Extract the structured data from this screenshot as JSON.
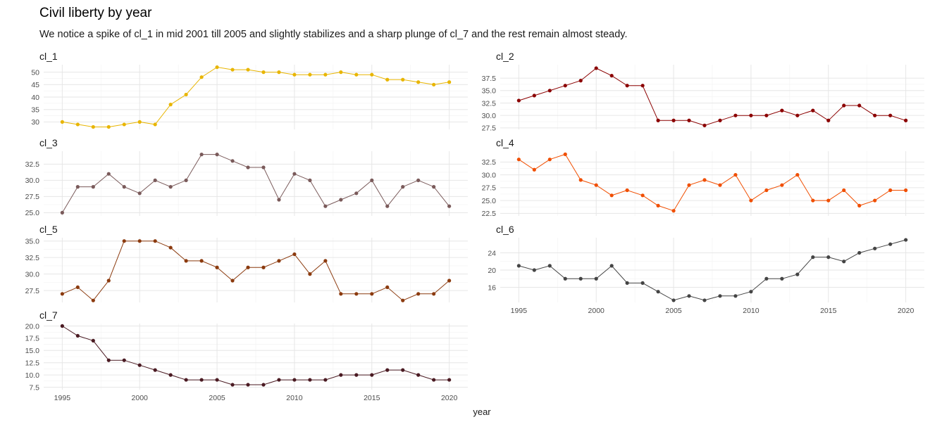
{
  "title": "Civil liberty by year",
  "subtitle": "We notice a spike of cl_1 in mid 2001 till 2005 and slightly stabilizes and a sharp plunge of cl_7 and the rest remain almost steady.",
  "chart_data": {
    "type": "line",
    "title": "Civil liberty by year",
    "subtitle": "We notice a spike of cl_1 in mid 2001 till 2005 and slightly stabilizes and a sharp plunge of cl_7 and the rest remain almost steady.",
    "xlabel": "year",
    "ylabel": "",
    "x": [
      1995,
      1996,
      1997,
      1998,
      1999,
      2000,
      2001,
      2002,
      2003,
      2004,
      2005,
      2006,
      2007,
      2008,
      2009,
      2010,
      2011,
      2012,
      2013,
      2014,
      2015,
      2016,
      2017,
      2018,
      2019,
      2020
    ],
    "x_ticks": [
      1995,
      2000,
      2005,
      2010,
      2015,
      2020
    ],
    "grid": true,
    "facets": [
      {
        "name": "cl_1",
        "color": "#E8B500",
        "ylim": [
          27,
          53
        ],
        "y_ticks": [
          30,
          35,
          40,
          45,
          50
        ],
        "y_tick_labels": [
          "30",
          "35",
          "40",
          "45",
          "50"
        ],
        "values": [
          30,
          29,
          28,
          28,
          29,
          30,
          29,
          37,
          41,
          48,
          52,
          51,
          51,
          50,
          50,
          49,
          49,
          49,
          50,
          49,
          49,
          47,
          47,
          46,
          45,
          46
        ]
      },
      {
        "name": "cl_2",
        "color": "#8B0000",
        "ylim": [
          27.2,
          40.2
        ],
        "y_ticks": [
          27.5,
          30,
          32.5,
          35,
          37.5
        ],
        "y_tick_labels": [
          "27.5",
          "30.0",
          "32.5",
          "35.0",
          "37.5"
        ],
        "values": [
          33,
          34,
          35,
          36,
          37,
          39.5,
          38,
          36,
          36,
          29,
          29,
          29,
          28,
          29,
          30,
          30,
          30,
          31,
          30,
          31,
          29,
          32,
          32,
          30,
          30,
          29
        ]
      },
      {
        "name": "cl_3",
        "color": "#7A5A5A",
        "ylim": [
          24.5,
          34.5
        ],
        "y_ticks": [
          25,
          27.5,
          30,
          32.5
        ],
        "y_tick_labels": [
          "25.0",
          "27.5",
          "30.0",
          "32.5"
        ],
        "values": [
          25,
          29,
          29,
          31,
          29,
          28,
          30,
          29,
          30,
          34,
          34,
          33,
          32,
          32,
          27,
          31,
          30,
          26,
          27,
          28,
          30,
          26,
          29,
          30,
          29,
          26
        ]
      },
      {
        "name": "cl_4",
        "color": "#F04E00",
        "ylim": [
          22,
          34.6
        ],
        "y_ticks": [
          22.5,
          25,
          27.5,
          30,
          32.5
        ],
        "y_tick_labels": [
          "22.5",
          "25.0",
          "27.5",
          "30.0",
          "32.5"
        ],
        "values": [
          33,
          31,
          33,
          34,
          29,
          28,
          26,
          27,
          26,
          24,
          23,
          28,
          29,
          28,
          30,
          25,
          27,
          28,
          30,
          25,
          25,
          27,
          24,
          25,
          27,
          27
        ]
      },
      {
        "name": "cl_5",
        "color": "#8B3A0E",
        "ylim": [
          25.7,
          35.5
        ],
        "y_ticks": [
          27.5,
          30,
          32.5,
          35
        ],
        "y_tick_labels": [
          "27.5",
          "30.0",
          "32.5",
          "35.0"
        ],
        "values": [
          27,
          28,
          26,
          29,
          35,
          35,
          35,
          34,
          32,
          32,
          31,
          29,
          31,
          31,
          32,
          33,
          30,
          32,
          27,
          27,
          27,
          28,
          26,
          27,
          27,
          29
        ]
      },
      {
        "name": "cl_6",
        "color": "#444444",
        "ylim": [
          12.5,
          27.5
        ],
        "y_ticks": [
          16,
          20,
          24
        ],
        "y_tick_labels": [
          "16",
          "20",
          "24"
        ],
        "values": [
          21,
          20,
          21,
          18,
          18,
          18,
          21,
          17,
          17,
          15,
          13,
          14,
          13,
          14,
          14,
          15,
          18,
          18,
          19,
          23,
          23,
          22,
          24,
          25,
          26,
          27
        ]
      },
      {
        "name": "cl_7",
        "color": "#4A1A22",
        "ylim": [
          7,
          20.5
        ],
        "y_ticks": [
          7.5,
          10,
          12.5,
          15,
          17.5,
          20
        ],
        "y_tick_labels": [
          "7.5",
          "10.0",
          "12.5",
          "15.0",
          "17.5",
          "20.0"
        ],
        "values": [
          20,
          18,
          17,
          13,
          13,
          12,
          11,
          10,
          9,
          9,
          9,
          8,
          8,
          8,
          9,
          9,
          9,
          9,
          10,
          10,
          10,
          11,
          11,
          10,
          9,
          9
        ]
      }
    ]
  }
}
